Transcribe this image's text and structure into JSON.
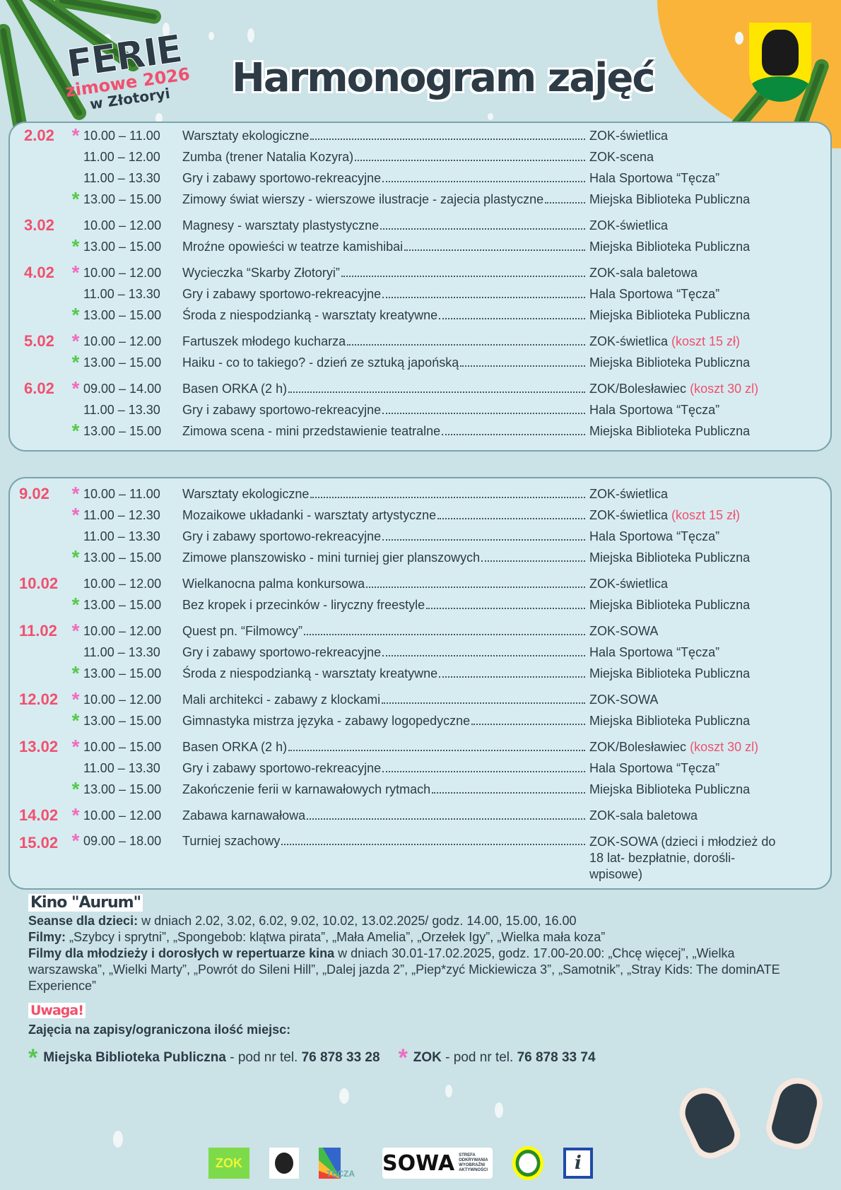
{
  "header": {
    "logo_line1": "FERIE",
    "logo_line2": "zimowe 2026",
    "logo_line3": "w Złotoryi",
    "title": "Harmonogram zajęć"
  },
  "colors": {
    "background": "#cbe2e7",
    "panel": "#d7ecf1",
    "accent_red": "#f0506e",
    "zok_marker": "#f06bc0",
    "library_marker": "#55c94a",
    "sun": "#fbb43a"
  },
  "week1": [
    {
      "date": "2.02",
      "rows": [
        {
          "marker": "pink",
          "time": "10.00 – 11.00",
          "activity": "Warsztaty ekologiczne",
          "location": "ZOK-świetlica",
          "cost": ""
        },
        {
          "marker": "",
          "time": "11.00 – 12.00",
          "activity": "Zumba (trener Natalia Kozyra)",
          "location": "ZOK-scena",
          "cost": ""
        },
        {
          "marker": "",
          "time": "11.00 – 13.30",
          "activity": "Gry i zabawy sportowo-rekreacyjne",
          "location": "Hala Sportowa “Tęcza”",
          "cost": ""
        },
        {
          "marker": "green",
          "time": "13.00 – 15.00",
          "activity": "Zimowy świat wierszy - wierszowe ilustracje - zajecia plastyczne",
          "location": "Miejska Biblioteka Publiczna",
          "cost": ""
        }
      ]
    },
    {
      "date": "3.02",
      "rows": [
        {
          "marker": "",
          "time": "10.00 – 12.00",
          "activity": "Magnesy - warsztaty plastystyczne",
          "location": "ZOK-świetlica",
          "cost": ""
        },
        {
          "marker": "green",
          "time": "13.00 – 15.00",
          "activity": "Mroźne opowieści w teatrze kamishibai",
          "location": "Miejska Biblioteka Publiczna",
          "cost": ""
        }
      ]
    },
    {
      "date": "4.02",
      "rows": [
        {
          "marker": "pink",
          "time": "10.00 – 12.00",
          "activity": "Wycieczka “Skarby Złotoryi”",
          "location": "ZOK-sala baletowa",
          "cost": ""
        },
        {
          "marker": "",
          "time": "11.00 – 13.30",
          "activity": "Gry i zabawy sportowo-rekreacyjne",
          "location": "Hala Sportowa “Tęcza”",
          "cost": ""
        },
        {
          "marker": "green",
          "time": "13.00 – 15.00",
          "activity": "Środa z niespodzianką - warsztaty kreatywne",
          "location": "Miejska Biblioteka Publiczna",
          "cost": ""
        }
      ]
    },
    {
      "date": "5.02",
      "rows": [
        {
          "marker": "pink",
          "time": "10.00 – 12.00",
          "activity": "Fartuszek młodego kucharza",
          "location": "ZOK-świetlica",
          "cost": "(koszt 15 zł)"
        },
        {
          "marker": "green",
          "time": "13.00 – 15.00",
          "activity": "Haiku - co to takiego? - dzień ze sztuką japońską",
          "location": "Miejska Biblioteka Publiczna",
          "cost": ""
        }
      ]
    },
    {
      "date": "6.02",
      "rows": [
        {
          "marker": "pink",
          "time": "09.00 – 14.00",
          "activity": "Basen ORKA (2 h)",
          "location": "ZOK/Bolesławiec",
          "cost": "(koszt 30 zl)"
        },
        {
          "marker": "",
          "time": "11.00 – 13.30",
          "activity": "Gry i zabawy sportowo-rekreacyjne",
          "location": "Hala Sportowa “Tęcza”",
          "cost": ""
        },
        {
          "marker": "green",
          "time": "13.00 – 15.00",
          "activity": "Zimowa scena - mini przedstawienie teatralne",
          "location": "Miejska Biblioteka Publiczna",
          "cost": ""
        }
      ]
    }
  ],
  "week2": [
    {
      "date": "9.02",
      "rows": [
        {
          "marker": "pink",
          "time": "10.00 – 11.00",
          "activity": "Warsztaty ekologiczne",
          "location": "ZOK-świetlica",
          "cost": ""
        },
        {
          "marker": "pink",
          "time": "11.00 – 12.30",
          "activity": "Mozaikowe układanki - warsztaty artystyczne",
          "location": "ZOK-świetlica",
          "cost": "(koszt 15 zł)"
        },
        {
          "marker": "",
          "time": "11.00 – 13.30",
          "activity": "Gry i zabawy sportowo-rekreacyjne",
          "location": "Hala Sportowa “Tęcza”",
          "cost": ""
        },
        {
          "marker": "green",
          "time": "13.00 – 15.00",
          "activity": "Zimowe planszowisko - mini turniej gier planszowych",
          "location": "Miejska Biblioteka Publiczna",
          "cost": ""
        }
      ]
    },
    {
      "date": "10.02",
      "rows": [
        {
          "marker": "",
          "time": "10.00 – 12.00",
          "activity": "Wielkanocna palma konkursowa",
          "location": "ZOK-świetlica",
          "cost": ""
        },
        {
          "marker": "green",
          "time": "13.00 – 15.00",
          "activity": "Bez kropek i przecinków - liryczny freestyle",
          "location": "Miejska Biblioteka Publiczna",
          "cost": ""
        }
      ]
    },
    {
      "date": "11.02",
      "rows": [
        {
          "marker": "pink",
          "time": "10.00 – 12.00",
          "activity": "Quest pn. “Filmowcy”",
          "location": "ZOK-SOWA",
          "cost": ""
        },
        {
          "marker": "",
          "time": "11.00 – 13.30",
          "activity": "Gry i zabawy sportowo-rekreacyjne",
          "location": "Hala Sportowa “Tęcza”",
          "cost": ""
        },
        {
          "marker": "green",
          "time": "13.00 – 15.00",
          "activity": "Środa z niespodzianką - warsztaty kreatywne",
          "location": "Miejska Biblioteka Publiczna",
          "cost": ""
        }
      ]
    },
    {
      "date": "12.02",
      "rows": [
        {
          "marker": "pink",
          "time": "10.00 – 12.00",
          "activity": "Mali architekci - zabawy z klockami",
          "location": "ZOK-SOWA",
          "cost": ""
        },
        {
          "marker": "green",
          "time": "13.00 – 15.00",
          "activity": "Gimnastyka mistrza języka - zabawy logopedyczne",
          "location": "Miejska Biblioteka Publiczna",
          "cost": ""
        }
      ]
    },
    {
      "date": "13.02",
      "rows": [
        {
          "marker": "pink",
          "time": "10.00 – 15.00",
          "activity": "Basen ORKA (2 h)",
          "location": "ZOK/Bolesławiec",
          "cost": "(koszt 30 zl)"
        },
        {
          "marker": "",
          "time": "11.00 – 13.30",
          "activity": "Gry i zabawy sportowo-rekreacyjne",
          "location": "Hala Sportowa “Tęcza”",
          "cost": ""
        },
        {
          "marker": "green",
          "time": "13.00 – 15.00",
          "activity": "Zakończenie ferii w karnawałowych rytmach",
          "location": "Miejska Biblioteka Publiczna",
          "cost": ""
        }
      ]
    },
    {
      "date": "14.02",
      "rows": [
        {
          "marker": "pink",
          "time": "10.00 – 12.00",
          "activity": "Zabawa karnawałowa",
          "location": "ZOK-sala baletowa",
          "cost": ""
        }
      ]
    },
    {
      "date": "15.02",
      "rows": [
        {
          "marker": "pink",
          "time": "09.00 – 18.00",
          "activity": "Turniej szachowy",
          "location": "ZOK-SOWA (dzieci i młodzież do 18 lat- bezpłatnie, dorośli-wpisowe)",
          "cost": ""
        }
      ]
    }
  ],
  "kino": {
    "title": "Kino \"Aurum\"",
    "seanse_label": "Seanse dla dzieci:",
    "seanse_text": " w dniach 2.02, 3.02, 6.02, 9.02, 10.02, 13.02.2025/ godz. 14.00, 15.00, 16.00",
    "filmy_label": "Filmy:",
    "filmy_text": " „Szybcy i sprytni”, „Spongebob: klątwa pirata”, „Mała Amelia”, „Orzełek Igy”, „Wielka mała koza”",
    "adult_label": "Filmy dla młodzieży i dorosłych w repertuarze kina",
    "adult_text": " w dniach 30.01-17.02.2025, godz. 17.00-20.00: „Chcę więcej”, „Wielka warszawska”, „Wielki Marty”, „Powrót do Sileni Hill”, „Dalej jazda 2”, „Piep*zyć Mickiewicza 3”, „Samotnik”, „Stray Kids: The dominATE Experience”"
  },
  "uwaga": {
    "title": "Uwaga!",
    "note": "Zajęcia na zapisy/ograniczona ilość miejsc:",
    "lib_name": "Miejska Biblioteka Publiczna",
    "lib_mid": " - pod nr tel. ",
    "lib_phone": "76 878 33 28",
    "zok_name": "ZOK",
    "zok_mid": " - pod nr tel. ",
    "zok_phone": "76 878 33 74"
  },
  "logos": {
    "zok": "ZOK",
    "tecza": "TĘCZA",
    "sowa": "SOWA",
    "sowa_sub": "STREFA ODKRYWANIA WYOBRAŹNI AKTYWNOŚCI",
    "info": "i"
  }
}
